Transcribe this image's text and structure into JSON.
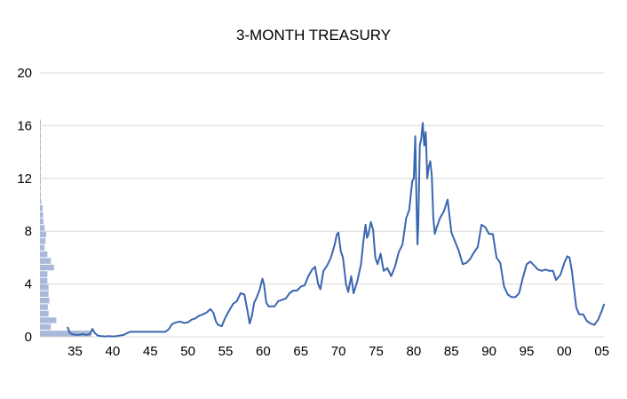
{
  "chart_data": {
    "type": "line",
    "title": "3-MONTH TREASURY",
    "xlabel": "",
    "ylabel": "",
    "ylim": [
      0,
      20
    ],
    "xlim": [
      1934,
      2005.5
    ],
    "yticks": [
      "0",
      "4",
      "8",
      "12",
      "16",
      "20"
    ],
    "xticks": [
      "35",
      "40",
      "45",
      "50",
      "55",
      "60",
      "65",
      "70",
      "75",
      "80",
      "85",
      "90",
      "95",
      "00",
      "05"
    ],
    "xtick_years": [
      1935,
      1940,
      1945,
      1950,
      1955,
      1960,
      1965,
      1970,
      1975,
      1980,
      1985,
      1990,
      1995,
      2000,
      2005
    ],
    "grid": true,
    "line_color": "#3a66b0",
    "histogram_color": "#a8b9d9",
    "series": [
      {
        "x": [
          1934.0,
          1934.3,
          1934.6,
          1935.0,
          1935.5,
          1936.0,
          1936.5,
          1937.0,
          1937.3,
          1937.6,
          1938.0,
          1938.5,
          1939.0,
          1939.5,
          1940.0,
          1940.5,
          1941.0,
          1941.5,
          1942.0,
          1942.3,
          1942.6,
          1943.0,
          1944.0,
          1945.0,
          1946.0,
          1947.0,
          1947.5,
          1947.8,
          1948.0,
          1948.5,
          1949.0,
          1949.5,
          1950.0,
          1950.5,
          1951.0,
          1951.5,
          1952.0,
          1952.5,
          1953.0,
          1953.4,
          1953.7,
          1954.0,
          1954.5,
          1955.0,
          1955.5,
          1956.0,
          1956.5,
          1957.0,
          1957.5,
          1957.9,
          1958.2,
          1958.5,
          1958.8,
          1959.0,
          1959.5,
          1959.9,
          1960.1,
          1960.4,
          1960.7,
          1961.0,
          1961.5,
          1962.0,
          1962.5,
          1963.0,
          1963.5,
          1964.0,
          1964.5,
          1965.0,
          1965.5,
          1966.0,
          1966.5,
          1966.9,
          1967.3,
          1967.6,
          1968.0,
          1968.5,
          1969.0,
          1969.5,
          1969.8,
          1970.0,
          1970.3,
          1970.6,
          1971.0,
          1971.3,
          1971.7,
          1972.0,
          1972.5,
          1973.0,
          1973.3,
          1973.6,
          1973.8,
          1974.0,
          1974.3,
          1974.6,
          1974.9,
          1975.2,
          1975.6,
          1976.0,
          1976.5,
          1977.0,
          1977.5,
          1978.0,
          1978.5,
          1979.0,
          1979.4,
          1979.8,
          1980.0,
          1980.2,
          1980.4,
          1980.5,
          1980.6,
          1980.8,
          1981.0,
          1981.2,
          1981.4,
          1981.6,
          1981.8,
          1982.0,
          1982.2,
          1982.4,
          1982.6,
          1982.8,
          1983.0,
          1983.5,
          1984.0,
          1984.5,
          1985.0,
          1985.5,
          1986.0,
          1986.5,
          1987.0,
          1987.5,
          1988.0,
          1988.5,
          1989.0,
          1989.5,
          1990.0,
          1990.5,
          1991.0,
          1991.5,
          1992.0,
          1992.5,
          1993.0,
          1993.5,
          1994.0,
          1994.5,
          1995.0,
          1995.5,
          1996.0,
          1996.5,
          1997.0,
          1997.5,
          1998.0,
          1998.5,
          1998.9,
          1999.2,
          1999.5,
          2000.0,
          2000.4,
          2000.7,
          2001.0,
          2001.3,
          2001.6,
          2002.0,
          2002.5,
          2003.0,
          2003.5,
          2004.0,
          2004.5,
          2005.0,
          2005.3
        ],
        "y": [
          0.75,
          0.3,
          0.2,
          0.15,
          0.15,
          0.2,
          0.15,
          0.2,
          0.6,
          0.3,
          0.1,
          0.05,
          0.03,
          0.05,
          0.03,
          0.05,
          0.1,
          0.15,
          0.3,
          0.38,
          0.38,
          0.38,
          0.38,
          0.38,
          0.38,
          0.38,
          0.6,
          0.9,
          1.0,
          1.1,
          1.15,
          1.05,
          1.1,
          1.3,
          1.4,
          1.6,
          1.7,
          1.85,
          2.1,
          1.8,
          1.2,
          0.9,
          0.8,
          1.5,
          2.0,
          2.5,
          2.7,
          3.3,
          3.2,
          2.0,
          1.0,
          1.6,
          2.6,
          2.8,
          3.5,
          4.4,
          4.0,
          2.6,
          2.3,
          2.3,
          2.3,
          2.7,
          2.8,
          2.9,
          3.3,
          3.5,
          3.5,
          3.8,
          3.9,
          4.6,
          5.1,
          5.3,
          4.0,
          3.6,
          5.0,
          5.4,
          6.0,
          7.0,
          7.8,
          7.9,
          6.5,
          6.0,
          4.0,
          3.4,
          4.6,
          3.3,
          4.2,
          5.5,
          7.2,
          8.5,
          7.5,
          7.8,
          8.7,
          8.1,
          6.0,
          5.5,
          6.3,
          5.0,
          5.2,
          4.6,
          5.3,
          6.4,
          7.0,
          9.0,
          9.6,
          11.8,
          12.0,
          15.2,
          9.0,
          7.0,
          8.5,
          14.5,
          15.0,
          16.2,
          14.5,
          15.5,
          12.0,
          12.9,
          13.3,
          12.2,
          9.0,
          7.8,
          8.2,
          9.0,
          9.5,
          10.4,
          7.9,
          7.2,
          6.5,
          5.5,
          5.6,
          5.9,
          6.4,
          6.8,
          8.5,
          8.3,
          7.8,
          7.8,
          6.0,
          5.6,
          3.8,
          3.2,
          3.0,
          3.0,
          3.3,
          4.5,
          5.5,
          5.7,
          5.4,
          5.1,
          5.0,
          5.1,
          5.0,
          5.0,
          4.3,
          4.5,
          4.7,
          5.6,
          6.1,
          6.0,
          5.0,
          3.6,
          2.2,
          1.7,
          1.7,
          1.2,
          1.0,
          0.9,
          1.3,
          2.0,
          2.5
        ]
      }
    ],
    "histogram": {
      "y_bins": [
        0.25,
        0.75,
        1.25,
        1.75,
        2.25,
        2.75,
        3.25,
        3.75,
        4.25,
        4.75,
        5.25,
        5.75,
        6.25,
        6.75,
        7.25,
        7.75,
        8.25,
        8.75,
        9.25,
        9.75,
        10.25,
        10.75,
        11.25,
        11.75,
        12.25,
        12.75,
        13.25,
        13.75,
        14.25,
        14.75,
        15.25,
        15.75,
        16.25
      ],
      "counts": [
        132,
        28,
        42,
        22,
        20,
        24,
        22,
        22,
        19,
        19,
        36,
        28,
        19,
        12,
        14,
        16,
        12,
        9,
        8,
        7,
        3,
        2,
        2,
        2,
        2,
        1,
        1,
        1,
        1,
        1,
        1,
        1,
        1
      ]
    }
  }
}
